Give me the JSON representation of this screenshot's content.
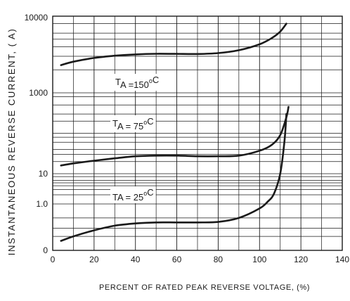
{
  "chart_data": {
    "type": "line",
    "title": "",
    "xlabel": "PERCENT OF RATED PEAK REVERSE VOLTAGE, (%)",
    "ylabel": "INSTANTANEOUS REVERSE CURRENT, ( A)",
    "xlim": [
      0,
      140
    ],
    "x_ticks": [
      0,
      20,
      40,
      60,
      80,
      100,
      120,
      140
    ],
    "y_tick_labels": [
      "0",
      "1.0",
      "10",
      "1000",
      "10000"
    ],
    "grid": true,
    "line_color": "#1a1a1a",
    "series": [
      {
        "label_parts": [
          "T",
          "A",
          " =150",
          "o",
          "C"
        ],
        "x": [
          4,
          10,
          20,
          30,
          40,
          50,
          60,
          70,
          80,
          90,
          100,
          106,
          110,
          113
        ],
        "y": [
          2300,
          2550,
          2850,
          3050,
          3170,
          3230,
          3220,
          3210,
          3300,
          3600,
          4300,
          5200,
          6300,
          8000
        ]
      },
      {
        "label_parts": [
          "T",
          "A",
          " = 75",
          "o",
          "C"
        ],
        "x": [
          4,
          10,
          20,
          30,
          40,
          50,
          60,
          70,
          80,
          90,
          100,
          106,
          110,
          113,
          114
        ],
        "y": [
          16,
          18,
          21,
          24,
          27,
          28,
          28,
          27,
          27,
          28,
          37,
          52,
          90,
          250,
          450
        ]
      },
      {
        "label_parts": [
          "TA = 25",
          "o",
          "C"
        ],
        "x": [
          4,
          10,
          20,
          30,
          40,
          50,
          60,
          70,
          80,
          90,
          100,
          104,
          107,
          110,
          112,
          113
        ],
        "y": [
          0.16,
          0.2,
          0.27,
          0.34,
          0.38,
          0.4,
          0.4,
          0.4,
          0.41,
          0.5,
          0.8,
          1.2,
          2.2,
          10,
          60,
          300
        ]
      }
    ]
  }
}
